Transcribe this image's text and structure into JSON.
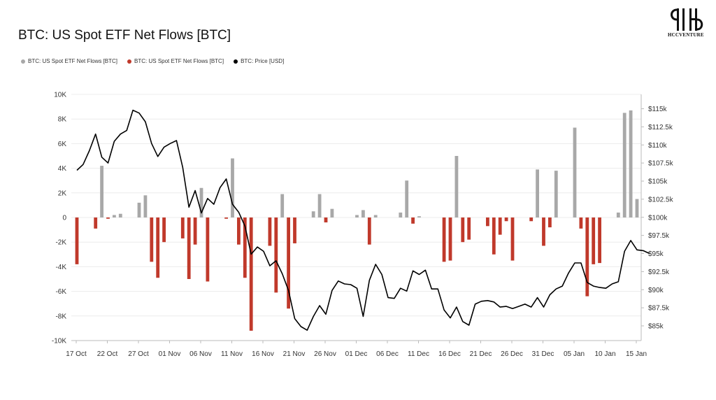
{
  "header": {
    "title": "BTC: US Spot ETF Net Flows [BTC]"
  },
  "logo": {
    "text": "HCCVENTURE"
  },
  "legend": [
    {
      "label": "BTC: US Spot ETF Net Flows [BTC]",
      "color": "#a8a8a8"
    },
    {
      "label": "BTC: US Spot ETF Net Flows [BTC]",
      "color": "#c0392b"
    },
    {
      "label": "BTC: Price [USD]",
      "color": "#000000"
    }
  ],
  "chart_data": {
    "type": "bar+line",
    "title": "BTC: US Spot ETF Net Flows [BTC]",
    "x_tick_labels": [
      "17 Oct",
      "22 Oct",
      "27 Oct",
      "01 Nov",
      "06 Nov",
      "11 Nov",
      "16 Nov",
      "21 Nov",
      "26 Nov",
      "01 Dec",
      "06 Dec",
      "11 Dec",
      "16 Dec",
      "21 Dec",
      "26 Dec",
      "31 Dec",
      "05 Jan",
      "10 Jan",
      "15 Jan"
    ],
    "left_axis": {
      "min": -10000,
      "max": 10000,
      "step": 2000,
      "tick_labels": [
        "10K",
        "8K",
        "6K",
        "4K",
        "2K",
        "0",
        "-2K",
        "-4K",
        "-6K",
        "-8K",
        "-10K"
      ]
    },
    "right_axis": {
      "min": 82500,
      "max": 117500,
      "tick_values": [
        85000,
        87500,
        90000,
        92500,
        95000,
        97500,
        100000,
        102500,
        105000,
        107500,
        110000,
        112500,
        115000
      ],
      "tick_labels": [
        "$85k",
        "$87.5k",
        "$90k",
        "$92.5k",
        "$95k",
        "$97.5k",
        "$100k",
        "$102.5k",
        "$105k",
        "$107.5k",
        "$110k",
        "$112.5k",
        "$115k"
      ]
    },
    "inflow_color": "#a8a8a8",
    "outflow_color": "#c0392b",
    "price_color": "#000000",
    "flows": [
      {
        "d": 0,
        "v": -3800
      },
      {
        "d": 3,
        "v": -900
      },
      {
        "d": 4,
        "v": 4200
      },
      {
        "d": 5,
        "v": -100
      },
      {
        "d": 6,
        "v": 200
      },
      {
        "d": 7,
        "v": 300
      },
      {
        "d": 10,
        "v": 1200
      },
      {
        "d": 11,
        "v": 1800
      },
      {
        "d": 12,
        "v": -3600
      },
      {
        "d": 13,
        "v": -4900
      },
      {
        "d": 14,
        "v": -2000
      },
      {
        "d": 17,
        "v": -1700
      },
      {
        "d": 18,
        "v": -5000
      },
      {
        "d": 19,
        "v": -2200
      },
      {
        "d": 20,
        "v": 2400
      },
      {
        "d": 21,
        "v": -5200
      },
      {
        "d": 24,
        "v": -100
      },
      {
        "d": 25,
        "v": 4800
      },
      {
        "d": 26,
        "v": -2200
      },
      {
        "d": 27,
        "v": -4900
      },
      {
        "d": 28,
        "v": -9200
      },
      {
        "d": 31,
        "v": -2300
      },
      {
        "d": 32,
        "v": -6100
      },
      {
        "d": 33,
        "v": 1900
      },
      {
        "d": 34,
        "v": -7400
      },
      {
        "d": 35,
        "v": -2100
      },
      {
        "d": 38,
        "v": 500
      },
      {
        "d": 39,
        "v": 1900
      },
      {
        "d": 40,
        "v": -400
      },
      {
        "d": 41,
        "v": 700
      },
      {
        "d": 45,
        "v": 200
      },
      {
        "d": 46,
        "v": 600
      },
      {
        "d": 47,
        "v": -2200
      },
      {
        "d": 48,
        "v": 200
      },
      {
        "d": 52,
        "v": 400
      },
      {
        "d": 53,
        "v": 3000
      },
      {
        "d": 54,
        "v": -500
      },
      {
        "d": 55,
        "v": 100
      },
      {
        "d": 59,
        "v": -3600
      },
      {
        "d": 60,
        "v": -3500
      },
      {
        "d": 61,
        "v": 5000
      },
      {
        "d": 62,
        "v": -2000
      },
      {
        "d": 63,
        "v": -1800
      },
      {
        "d": 66,
        "v": -700
      },
      {
        "d": 67,
        "v": -3000
      },
      {
        "d": 68,
        "v": -1400
      },
      {
        "d": 69,
        "v": -300
      },
      {
        "d": 70,
        "v": -3500
      },
      {
        "d": 73,
        "v": -300
      },
      {
        "d": 74,
        "v": 3900
      },
      {
        "d": 75,
        "v": -2300
      },
      {
        "d": 76,
        "v": -800
      },
      {
        "d": 77,
        "v": 3800
      },
      {
        "d": 80,
        "v": 7300
      },
      {
        "d": 81,
        "v": -900
      },
      {
        "d": 82,
        "v": -6400
      },
      {
        "d": 83,
        "v": -3800
      },
      {
        "d": 84,
        "v": -3700
      },
      {
        "d": 87,
        "v": 400
      },
      {
        "d": 88,
        "v": 8500
      },
      {
        "d": 89,
        "v": 8700
      },
      {
        "d": 90,
        "v": 1500
      }
    ],
    "price": [
      {
        "d": 0,
        "p": 106500
      },
      {
        "d": 1,
        "p": 107300
      },
      {
        "d": 2,
        "p": 109200
      },
      {
        "d": 3,
        "p": 111500
      },
      {
        "d": 4,
        "p": 108300
      },
      {
        "d": 5,
        "p": 107500
      },
      {
        "d": 6,
        "p": 110500
      },
      {
        "d": 7,
        "p": 111500
      },
      {
        "d": 8,
        "p": 112000
      },
      {
        "d": 9,
        "p": 114800
      },
      {
        "d": 10,
        "p": 114400
      },
      {
        "d": 11,
        "p": 113200
      },
      {
        "d": 12,
        "p": 110200
      },
      {
        "d": 13,
        "p": 108400
      },
      {
        "d": 14,
        "p": 109700
      },
      {
        "d": 15,
        "p": 110200
      },
      {
        "d": 16,
        "p": 110600
      },
      {
        "d": 17,
        "p": 106900
      },
      {
        "d": 18,
        "p": 101400
      },
      {
        "d": 19,
        "p": 103700
      },
      {
        "d": 20,
        "p": 100600
      },
      {
        "d": 21,
        "p": 102600
      },
      {
        "d": 22,
        "p": 101800
      },
      {
        "d": 23,
        "p": 104100
      },
      {
        "d": 24,
        "p": 105300
      },
      {
        "d": 25,
        "p": 101800
      },
      {
        "d": 26,
        "p": 100700
      },
      {
        "d": 27,
        "p": 98800
      },
      {
        "d": 28,
        "p": 94900
      },
      {
        "d": 29,
        "p": 95900
      },
      {
        "d": 30,
        "p": 95300
      },
      {
        "d": 31,
        "p": 93300
      },
      {
        "d": 32,
        "p": 94000
      },
      {
        "d": 33,
        "p": 92200
      },
      {
        "d": 34,
        "p": 89900
      },
      {
        "d": 35,
        "p": 86000
      },
      {
        "d": 36,
        "p": 84900
      },
      {
        "d": 37,
        "p": 84400
      },
      {
        "d": 38,
        "p": 86300
      },
      {
        "d": 39,
        "p": 87800
      },
      {
        "d": 40,
        "p": 86600
      },
      {
        "d": 41,
        "p": 89900
      },
      {
        "d": 42,
        "p": 91200
      },
      {
        "d": 43,
        "p": 90800
      },
      {
        "d": 44,
        "p": 90700
      },
      {
        "d": 45,
        "p": 90200
      },
      {
        "d": 46,
        "p": 86300
      },
      {
        "d": 47,
        "p": 91300
      },
      {
        "d": 48,
        "p": 93500
      },
      {
        "d": 49,
        "p": 92100
      },
      {
        "d": 50,
        "p": 88900
      },
      {
        "d": 51,
        "p": 88800
      },
      {
        "d": 52,
        "p": 90200
      },
      {
        "d": 53,
        "p": 89800
      },
      {
        "d": 54,
        "p": 92600
      },
      {
        "d": 55,
        "p": 92100
      },
      {
        "d": 56,
        "p": 92700
      },
      {
        "d": 57,
        "p": 90100
      },
      {
        "d": 58,
        "p": 90100
      },
      {
        "d": 59,
        "p": 87200
      },
      {
        "d": 60,
        "p": 86100
      },
      {
        "d": 61,
        "p": 87600
      },
      {
        "d": 62,
        "p": 85600
      },
      {
        "d": 63,
        "p": 85100
      },
      {
        "d": 64,
        "p": 88000
      },
      {
        "d": 65,
        "p": 88400
      },
      {
        "d": 66,
        "p": 88500
      },
      {
        "d": 67,
        "p": 88300
      },
      {
        "d": 68,
        "p": 87600
      },
      {
        "d": 69,
        "p": 87700
      },
      {
        "d": 70,
        "p": 87400
      },
      {
        "d": 71,
        "p": 87700
      },
      {
        "d": 72,
        "p": 88000
      },
      {
        "d": 73,
        "p": 87600
      },
      {
        "d": 74,
        "p": 88900
      },
      {
        "d": 75,
        "p": 87600
      },
      {
        "d": 76,
        "p": 89300
      },
      {
        "d": 77,
        "p": 90100
      },
      {
        "d": 78,
        "p": 90500
      },
      {
        "d": 79,
        "p": 92300
      },
      {
        "d": 80,
        "p": 93700
      },
      {
        "d": 81,
        "p": 93700
      },
      {
        "d": 82,
        "p": 91000
      },
      {
        "d": 83,
        "p": 90500
      },
      {
        "d": 84,
        "p": 90300
      },
      {
        "d": 85,
        "p": 90200
      },
      {
        "d": 86,
        "p": 90800
      },
      {
        "d": 87,
        "p": 91100
      },
      {
        "d": 88,
        "p": 95300
      },
      {
        "d": 89,
        "p": 96800
      },
      {
        "d": 90,
        "p": 95500
      },
      {
        "d": 91,
        "p": 95400
      },
      {
        "d": 92,
        "p": 95000
      }
    ]
  }
}
